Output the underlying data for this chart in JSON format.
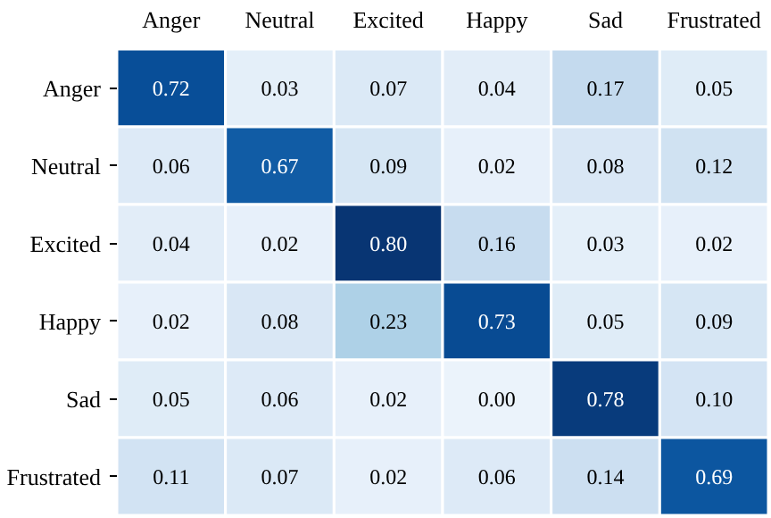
{
  "chart_data": {
    "type": "heatmap",
    "categories": [
      "Anger",
      "Neutral",
      "Excited",
      "Happy",
      "Sad",
      "Frustrated"
    ],
    "y_categories": [
      "Anger",
      "Neutral",
      "Excited",
      "Happy",
      "Sad",
      "Frustrated"
    ],
    "cells": [
      [
        0.72,
        0.03,
        0.07,
        0.04,
        0.17,
        0.05
      ],
      [
        0.06,
        0.67,
        0.09,
        0.02,
        0.08,
        0.12
      ],
      [
        0.04,
        0.02,
        0.8,
        0.16,
        0.03,
        0.02
      ],
      [
        0.02,
        0.08,
        0.23,
        0.73,
        0.05,
        0.09
      ],
      [
        0.05,
        0.06,
        0.02,
        0.0,
        0.78,
        0.1
      ],
      [
        0.11,
        0.07,
        0.02,
        0.06,
        0.14,
        0.69
      ]
    ],
    "cell_labels": [
      [
        "0.72",
        "0.03",
        "0.07",
        "0.04",
        "0.17",
        "0.05"
      ],
      [
        "0.06",
        "0.67",
        "0.09",
        "0.02",
        "0.08",
        "0.12"
      ],
      [
        "0.04",
        "0.02",
        "0.80",
        "0.16",
        "0.03",
        "0.02"
      ],
      [
        "0.02",
        "0.08",
        "0.23",
        "0.73",
        "0.05",
        "0.09"
      ],
      [
        "0.05",
        "0.06",
        "0.02",
        "0.00",
        "0.78",
        "0.10"
      ],
      [
        "0.11",
        "0.07",
        "0.02",
        "0.06",
        "0.14",
        "0.69"
      ]
    ]
  }
}
